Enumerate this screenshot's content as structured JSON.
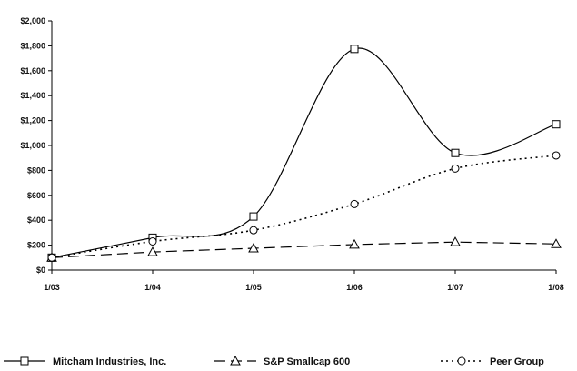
{
  "chart_data": {
    "type": "line",
    "categories": [
      "1/03",
      "1/04",
      "1/05",
      "1/06",
      "1/07",
      "1/08"
    ],
    "ylim": [
      0,
      2000
    ],
    "yticks": [
      "$0",
      "$200",
      "$400",
      "$600",
      "$800",
      "$1,000",
      "$1,200",
      "$1,400",
      "$1,600",
      "$1,800",
      "$2,000"
    ],
    "grid": false,
    "legend": "bottom",
    "series": [
      {
        "name": "Mitcham Industries, Inc.",
        "values": [
          100,
          260,
          430,
          1775,
          940,
          1170
        ],
        "marker": "square",
        "dash": "solid",
        "smooth": true
      },
      {
        "name": "S&P Smallcap 600",
        "values": [
          100,
          145,
          175,
          205,
          225,
          210
        ],
        "marker": "triangle",
        "dash": "long-dash",
        "smooth": false
      },
      {
        "name": "Peer Group",
        "values": [
          100,
          230,
          320,
          530,
          815,
          920
        ],
        "marker": "circle",
        "dash": "dotted",
        "smooth": true
      }
    ]
  }
}
